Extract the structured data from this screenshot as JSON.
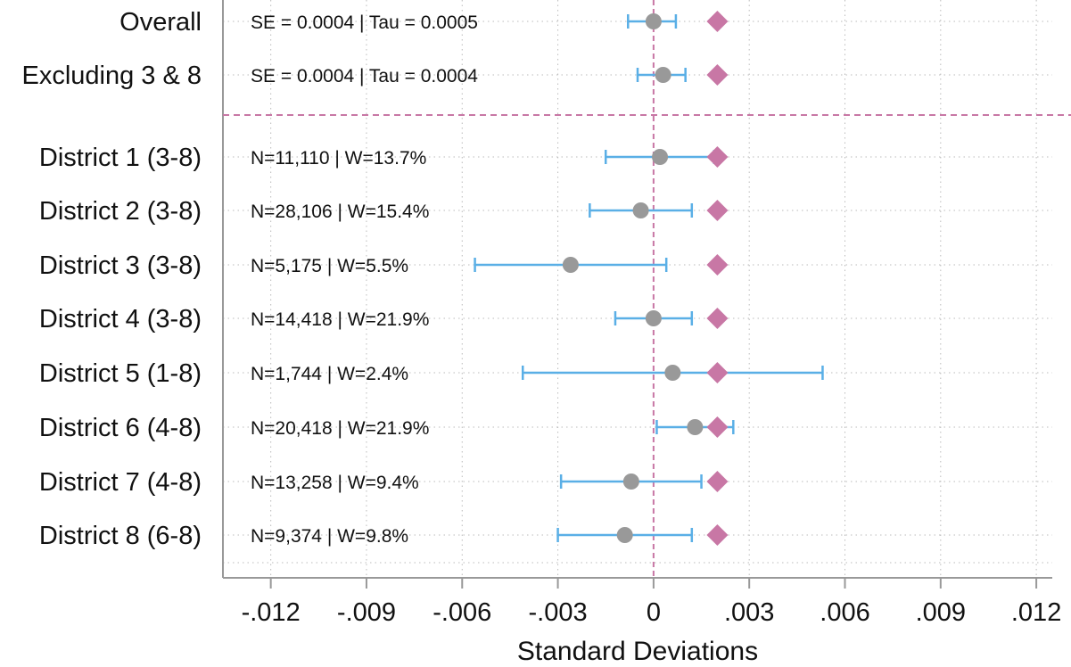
{
  "chart_data": {
    "type": "forest",
    "title": "",
    "xlabel": "Standard Deviations",
    "xlim": [
      -0.0135,
      0.0125
    ],
    "x_ticks": [
      -0.012,
      -0.009,
      -0.006,
      -0.003,
      0,
      0.003,
      0.006,
      0.009,
      0.012
    ],
    "x_tick_labels": [
      "-.012",
      "-.009",
      "-.006",
      "-.003",
      "0",
      ".003",
      ".006",
      ".009",
      ".012"
    ],
    "reference_line_x": 0,
    "diamond_x": 0.002,
    "grid": true,
    "colors": {
      "ci": "#5aafe6",
      "point": "#999999",
      "diamond": "#c877a5",
      "reference": "#c877a5",
      "grid": "#bbbbbb",
      "axis": "#999999"
    },
    "rows": [
      {
        "label": "Overall",
        "annotation": "SE = 0.0004 | Tau = 0.0005",
        "estimate": 0.0,
        "ci_low": -0.0008,
        "ci_high": 0.0007
      },
      {
        "label": "Excluding 3 & 8",
        "annotation": "SE = 0.0004 | Tau = 0.0004",
        "estimate": 0.0003,
        "ci_low": -0.0005,
        "ci_high": 0.001
      },
      {
        "label": "District 1 (3-8)",
        "annotation": "N=11,110 | W=13.7%",
        "estimate": 0.0002,
        "ci_low": -0.0015,
        "ci_high": 0.0019
      },
      {
        "label": "District 2 (3-8)",
        "annotation": "N=28,106 | W=15.4%",
        "estimate": -0.0004,
        "ci_low": -0.002,
        "ci_high": 0.0012
      },
      {
        "label": "District 3 (3-8)",
        "annotation": "N=5,175 | W=5.5%",
        "estimate": -0.0026,
        "ci_low": -0.0056,
        "ci_high": 0.0004
      },
      {
        "label": "District 4 (3-8)",
        "annotation": "N=14,418 | W=21.9%",
        "estimate": 0.0,
        "ci_low": -0.0012,
        "ci_high": 0.0012
      },
      {
        "label": "District 5 (1-8)",
        "annotation": "N=1,744 | W=2.4%",
        "estimate": 0.0006,
        "ci_low": -0.0041,
        "ci_high": 0.0053
      },
      {
        "label": "District 6 (4-8)",
        "annotation": "N=20,418 | W=21.9%",
        "estimate": 0.0013,
        "ci_low": 0.0001,
        "ci_high": 0.0025
      },
      {
        "label": "District 7 (4-8)",
        "annotation": "N=13,258 | W=9.4%",
        "estimate": -0.0007,
        "ci_low": -0.0029,
        "ci_high": 0.0015
      },
      {
        "label": "District 8 (6-8)",
        "annotation": "N=9,374 | W=9.8%",
        "estimate": -0.0009,
        "ci_low": -0.003,
        "ci_high": 0.0012
      }
    ]
  }
}
